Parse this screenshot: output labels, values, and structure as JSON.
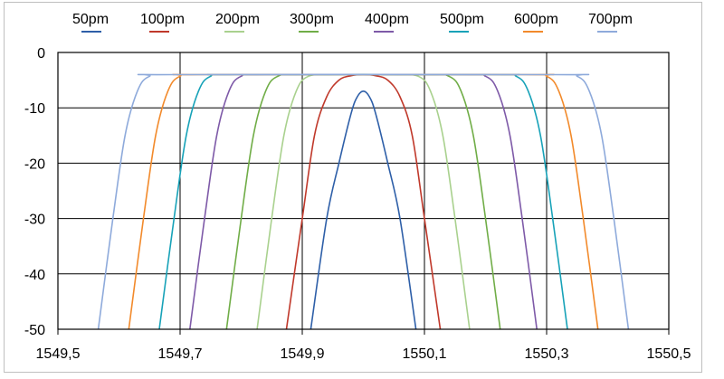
{
  "chart_data": {
    "type": "line",
    "title": "",
    "xlabel": "",
    "ylabel": "",
    "xlim": [
      1549.5,
      1550.5
    ],
    "ylim": [
      -50,
      0
    ],
    "x_ticks": [
      1549.5,
      1549.7,
      1549.9,
      1550.1,
      1550.3,
      1550.5
    ],
    "x_tick_labels": [
      "1549,5",
      "1549,7",
      "1549,9",
      "1550,1",
      "1550,3",
      "1550,5"
    ],
    "y_ticks": [
      0,
      -10,
      -20,
      -30,
      -40,
      -50
    ],
    "y_tick_labels": [
      "0",
      "-10",
      "-20",
      "-30",
      "-40",
      "-50"
    ],
    "grid": true,
    "legend_position": "top",
    "series": [
      {
        "name": "50pm",
        "color": "#2e5fa8",
        "x": [
          1549.914,
          1549.94,
          1549.96,
          1549.98,
          1549.99,
          1550.0,
          1550.01,
          1550.02,
          1550.04,
          1550.06,
          1550.086
        ],
        "y": [
          -50,
          -30,
          -20,
          -11,
          -8,
          -7,
          -8,
          -11,
          -20,
          -30,
          -50
        ]
      },
      {
        "name": "100pm",
        "color": "#c0392b",
        "x": [
          1549.874,
          1549.9,
          1549.92,
          1549.94,
          1549.96,
          1549.98,
          1550.0,
          1550.02,
          1550.04,
          1550.06,
          1550.08,
          1550.1,
          1550.126
        ],
        "y": [
          -50,
          -30,
          -15,
          -8,
          -5,
          -4.2,
          -4,
          -4.2,
          -5,
          -8,
          -15,
          -30,
          -50
        ]
      },
      {
        "name": "200pm",
        "color": "#a9d18e",
        "x": [
          1549.826,
          1549.85,
          1549.87,
          1549.89,
          1549.91,
          1549.95,
          1550.05,
          1550.09,
          1550.11,
          1550.13,
          1550.15,
          1550.174
        ],
        "y": [
          -50,
          -30,
          -15,
          -7,
          -4.3,
          -4,
          -4,
          -4.3,
          -7,
          -15,
          -30,
          -50
        ]
      },
      {
        "name": "300pm",
        "color": "#70ad47",
        "x": [
          1549.776,
          1549.8,
          1549.82,
          1549.84,
          1549.86,
          1549.9,
          1550.1,
          1550.14,
          1550.16,
          1550.18,
          1550.2,
          1550.224
        ],
        "y": [
          -50,
          -30,
          -15,
          -7,
          -4.3,
          -4,
          -4,
          -4.3,
          -7,
          -15,
          -30,
          -50
        ]
      },
      {
        "name": "400pm",
        "color": "#7e5aa8",
        "x": [
          1549.716,
          1549.74,
          1549.76,
          1549.78,
          1549.8,
          1549.84,
          1550.16,
          1550.2,
          1550.22,
          1550.24,
          1550.26,
          1550.284
        ],
        "y": [
          -50,
          -30,
          -15,
          -7,
          -4.3,
          -4,
          -4,
          -4.3,
          -7,
          -15,
          -30,
          -50
        ]
      },
      {
        "name": "500pm",
        "color": "#17a2b8",
        "x": [
          1549.666,
          1549.69,
          1549.71,
          1549.73,
          1549.75,
          1549.79,
          1550.21,
          1550.25,
          1550.27,
          1550.29,
          1550.31,
          1550.334
        ],
        "y": [
          -50,
          -30,
          -15,
          -7,
          -4.3,
          -4,
          -4,
          -4.3,
          -7,
          -15,
          -30,
          -50
        ]
      },
      {
        "name": "600pm",
        "color": "#f28a2b",
        "x": [
          1549.616,
          1549.64,
          1549.66,
          1549.68,
          1549.7,
          1549.74,
          1550.26,
          1550.3,
          1550.32,
          1550.34,
          1550.36,
          1550.384
        ],
        "y": [
          -50,
          -30,
          -15,
          -7,
          -4.3,
          -4,
          -4,
          -4.3,
          -7,
          -15,
          -30,
          -50
        ]
      },
      {
        "name": "700pm",
        "color": "#8eaadb",
        "x": [
          1549.566,
          1549.59,
          1549.61,
          1549.63,
          1549.65,
          1549.69,
          1550.31,
          1550.35,
          1550.37,
          1550.39,
          1550.41,
          1550.434
        ],
        "y": [
          -50,
          -30,
          -15,
          -7,
          -4.3,
          -4,
          -4,
          -4.3,
          -7,
          -15,
          -30,
          -50
        ]
      }
    ]
  }
}
